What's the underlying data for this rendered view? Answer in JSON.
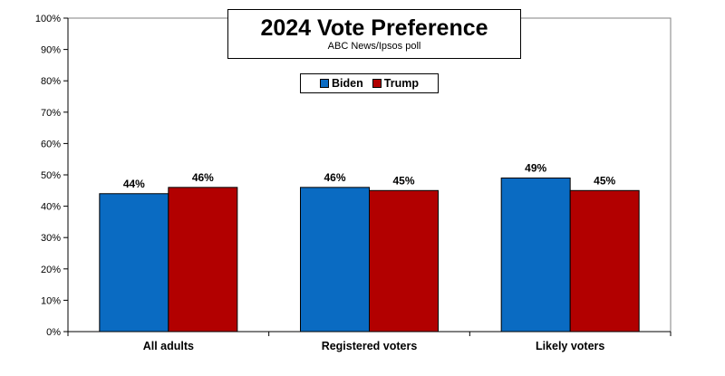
{
  "colors": {
    "biden": "#0a6bc2",
    "trump": "#b20000",
    "outline": "#000000"
  },
  "chart_data": {
    "type": "bar",
    "title": "2024 Vote Preference",
    "subtitle": "ABC News/Ipsos poll",
    "categories": [
      "All adults",
      "Registered voters",
      "Likely voters"
    ],
    "series": [
      {
        "name": "Biden",
        "values": [
          44,
          46,
          49
        ],
        "labels": [
          "44%",
          "46%",
          "49%"
        ]
      },
      {
        "name": "Trump",
        "values": [
          46,
          45,
          45
        ],
        "labels": [
          "46%",
          "45%",
          "45%"
        ]
      }
    ],
    "ylim": [
      0,
      100
    ],
    "yticks": [
      0,
      10,
      20,
      30,
      40,
      50,
      60,
      70,
      80,
      90,
      100
    ],
    "ytick_labels": [
      "0%",
      "10%",
      "20%",
      "30%",
      "40%",
      "50%",
      "60%",
      "70%",
      "80%",
      "90%",
      "100%"
    ],
    "grid": false,
    "legend_position": "top-center"
  }
}
